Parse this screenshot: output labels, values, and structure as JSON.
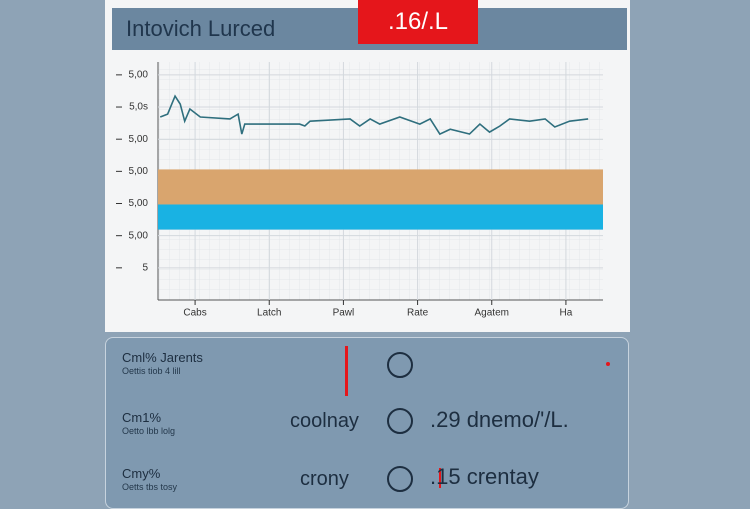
{
  "header": {
    "title": "Intovich Lurced",
    "badge": ".16/.L"
  },
  "chart_data": {
    "type": "line",
    "xlim": [
      0,
      6
    ],
    "xticks": [
      {
        "value": 0.5,
        "label": "Cabs"
      },
      {
        "value": 1.5,
        "label": "Latch"
      },
      {
        "value": 2.5,
        "label": "Pawl"
      },
      {
        "value": 3.5,
        "label": "Rate"
      },
      {
        "value": 4.5,
        "label": "Agatem"
      },
      {
        "value": 5.5,
        "label": "Ha"
      }
    ],
    "ylim": [
      0,
      7.4
    ],
    "yticks": [
      {
        "value": 7,
        "label": "5,00"
      },
      {
        "value": 6,
        "label": "5,0s"
      },
      {
        "value": 5,
        "label": "5,00"
      },
      {
        "value": 4,
        "label": "5,00"
      },
      {
        "value": 3,
        "label": "5,00"
      },
      {
        "value": 2,
        "label": "5,00"
      },
      {
        "value": 1,
        "label": "5"
      }
    ],
    "grid": true,
    "series": [
      {
        "color": "#2f6f7e",
        "x": [
          0.03,
          0.13,
          0.23,
          0.3,
          0.36,
          0.43,
          0.57,
          0.97,
          1.08,
          1.13,
          1.17,
          1.91,
          1.98,
          2.05,
          2.59,
          2.72,
          2.86,
          2.99,
          3.26,
          3.53,
          3.67,
          3.8,
          3.94,
          4.2,
          4.34,
          4.47,
          4.61,
          4.74,
          5.01,
          5.22,
          5.35,
          5.55,
          5.8
        ],
        "values": [
          5.69,
          5.78,
          6.34,
          6.09,
          5.56,
          5.94,
          5.69,
          5.63,
          5.78,
          5.16,
          5.47,
          5.47,
          5.41,
          5.56,
          5.63,
          5.41,
          5.63,
          5.47,
          5.69,
          5.47,
          5.63,
          5.16,
          5.31,
          5.16,
          5.47,
          5.22,
          5.41,
          5.63,
          5.56,
          5.63,
          5.38,
          5.56,
          5.63
        ]
      }
    ],
    "bands": [
      {
        "color": "#d9a56e",
        "from": 2.97,
        "to": 4.06
      },
      {
        "color": "#19b2e3",
        "from": 2.19,
        "to": 2.97
      }
    ]
  },
  "rows": [
    {
      "label": "Cml%  Jarents",
      "sub": "Oettis tiob 4 lill"
    },
    {
      "label": "Cm1%",
      "sub": "Oetto lbb lolg",
      "name": "coolnay",
      "value": ".29 dnemo/'/L."
    },
    {
      "label": "Cmy%",
      "sub": "Oetts tbs tosy",
      "name": "crony",
      "value": ".15 crentay"
    }
  ]
}
